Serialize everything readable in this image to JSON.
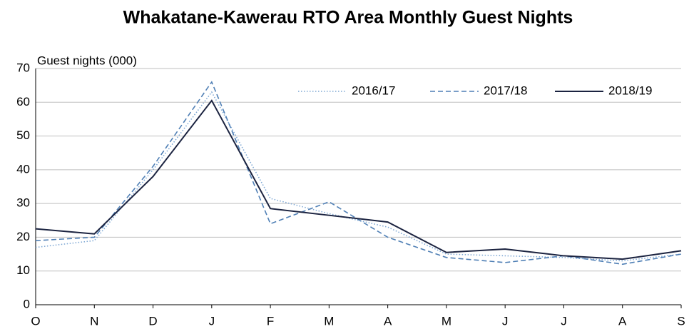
{
  "chart_data": {
    "type": "line",
    "title": "Whakatane-Kawerau RTO Area Monthly Guest Nights",
    "y_label": "Guest nights (000)",
    "categories": [
      "O",
      "N",
      "D",
      "J",
      "F",
      "M",
      "A",
      "M",
      "J",
      "J",
      "A",
      "S"
    ],
    "series": [
      {
        "name": "2016/17",
        "color": "#7fa8d4",
        "dash": "dotted",
        "values": [
          17,
          19,
          40,
          63,
          31.5,
          27,
          23,
          15,
          14.5,
          14,
          13,
          15
        ]
      },
      {
        "name": "2017/18",
        "color": "#4f7fb5",
        "dash": "dashed",
        "values": [
          19,
          20,
          41,
          66,
          24,
          30.5,
          20,
          14,
          12.5,
          14.5,
          12,
          15
        ]
      },
      {
        "name": "2018/19",
        "color": "#1b2340",
        "dash": "solid",
        "values": [
          22.5,
          21,
          38,
          60.5,
          28.5,
          26.5,
          24.5,
          15.5,
          16.5,
          14.5,
          13.5,
          16
        ]
      }
    ],
    "ylim": [
      0,
      70
    ],
    "yticks": [
      0,
      10,
      20,
      30,
      40,
      50,
      60,
      70
    ],
    "grid": true,
    "legend": "top-right"
  }
}
